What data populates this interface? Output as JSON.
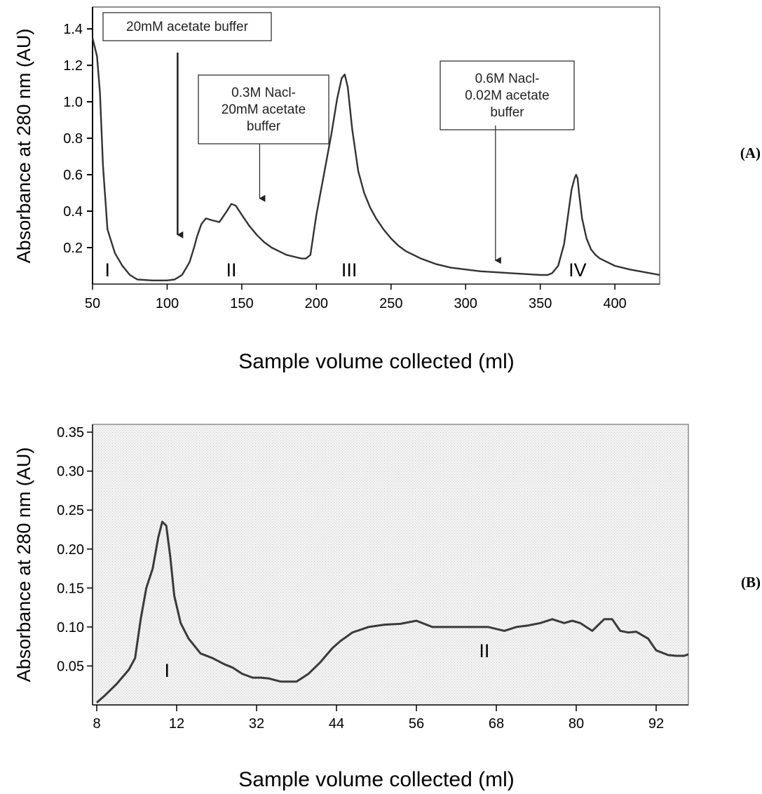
{
  "chart_data": [
    {
      "type": "line",
      "panel_label": "(A)",
      "xlabel": "Sample volume collected (ml)",
      "ylabel": "Absorbance at 280 nm (AU)",
      "xlim": [
        50,
        430
      ],
      "ylim": [
        0,
        1.52
      ],
      "x_ticks": [
        "50",
        "100",
        "150",
        "200",
        "250",
        "300",
        "350",
        "400"
      ],
      "y_ticks": [
        "0.2",
        "0.4",
        "0.6",
        "0.8",
        "1.0",
        "1.2",
        "1.4"
      ],
      "grid": false,
      "series": [
        {
          "x": [
            50,
            53,
            55,
            57,
            60,
            65,
            70,
            75,
            80,
            90,
            100,
            105,
            110,
            115,
            118,
            120,
            123,
            126,
            130,
            135,
            140,
            143,
            146,
            150,
            155,
            160,
            165,
            170,
            175,
            180,
            185,
            190,
            193,
            196,
            200,
            205,
            210,
            214,
            217,
            219,
            221,
            224,
            228,
            232,
            236,
            240,
            245,
            250,
            255,
            260,
            270,
            280,
            290,
            300,
            310,
            320,
            330,
            340,
            350,
            355,
            358,
            362,
            366,
            369,
            371,
            373,
            374,
            375,
            376,
            378,
            381,
            384,
            387,
            390,
            395,
            400,
            410,
            420,
            430
          ],
          "y": [
            1.35,
            1.25,
            1.05,
            0.65,
            0.3,
            0.17,
            0.1,
            0.05,
            0.025,
            0.02,
            0.02,
            0.025,
            0.05,
            0.12,
            0.2,
            0.26,
            0.33,
            0.36,
            0.35,
            0.34,
            0.4,
            0.44,
            0.43,
            0.38,
            0.32,
            0.27,
            0.23,
            0.2,
            0.18,
            0.16,
            0.15,
            0.14,
            0.14,
            0.16,
            0.38,
            0.6,
            0.82,
            1.02,
            1.13,
            1.15,
            1.08,
            0.85,
            0.62,
            0.5,
            0.42,
            0.36,
            0.3,
            0.25,
            0.21,
            0.18,
            0.14,
            0.11,
            0.09,
            0.08,
            0.07,
            0.065,
            0.06,
            0.055,
            0.05,
            0.05,
            0.06,
            0.1,
            0.22,
            0.4,
            0.52,
            0.58,
            0.6,
            0.58,
            0.5,
            0.36,
            0.25,
            0.19,
            0.16,
            0.14,
            0.12,
            0.1,
            0.08,
            0.065,
            0.05
          ]
        }
      ],
      "fraction_labels": [
        {
          "text": "I",
          "x": 60,
          "y": 0.08
        },
        {
          "text": "II",
          "x": 143,
          "y": 0.08
        },
        {
          "text": "III",
          "x": 222,
          "y": 0.08
        },
        {
          "text": "IV",
          "x": 375,
          "y": 0.08
        }
      ],
      "annotations": [
        {
          "lines": [
            "20mM acetate buffer"
          ],
          "arrow_x": 107,
          "arrow_top_y": 1.27,
          "arrow_tip_y": 0.27
        },
        {
          "lines": [
            "0.3M Nacl-",
            "20mM acetate",
            "buffer"
          ],
          "arrow_x": 162,
          "arrow_top_y": 0.77,
          "arrow_tip_y": 0.47
        },
        {
          "lines": [
            "0.6M Nacl-",
            "0.02M acetate",
            "buffer"
          ],
          "arrow_x": 320,
          "arrow_top_y": 0.87,
          "arrow_tip_y": 0.13
        }
      ]
    },
    {
      "type": "line",
      "panel_label": "(B)",
      "xlabel": "Sample volume collected (ml)",
      "ylabel": "Absorbance at 280 nm (AU)",
      "x_ticks": [
        "8",
        "12",
        "32",
        "44",
        "56",
        "68",
        "80",
        "92"
      ],
      "x_tick_positions": [
        0,
        1,
        2,
        3,
        4,
        5,
        6,
        7
      ],
      "xlim_positions": [
        0,
        7.46
      ],
      "ylim": [
        0,
        0.36
      ],
      "y_ticks": [
        "0.05",
        "0.10",
        "0.15",
        "0.20",
        "0.25",
        "0.30",
        "0.35"
      ],
      "grid": true,
      "series": [
        {
          "x": [
            0,
            0.1,
            0.25,
            0.4,
            0.48,
            0.55,
            0.62,
            0.7,
            0.77,
            0.82,
            0.87,
            0.92,
            0.97,
            1.05,
            1.15,
            1.3,
            1.45,
            1.6,
            1.7,
            1.82,
            1.95,
            2.05,
            2.15,
            2.3,
            2.5,
            2.65,
            2.8,
            2.95,
            3.05,
            3.2,
            3.4,
            3.6,
            3.8,
            4.0,
            4.2,
            4.35,
            4.5,
            4.7,
            4.9,
            5.1,
            5.25,
            5.4,
            5.55,
            5.7,
            5.85,
            5.95,
            6.05,
            6.2,
            6.35,
            6.45,
            6.55,
            6.65,
            6.75,
            6.9,
            7.0,
            7.15,
            7.25,
            7.35,
            7.46
          ],
          "y": [
            0.003,
            0.012,
            0.027,
            0.045,
            0.06,
            0.11,
            0.15,
            0.175,
            0.215,
            0.235,
            0.23,
            0.19,
            0.14,
            0.105,
            0.085,
            0.066,
            0.06,
            0.052,
            0.048,
            0.04,
            0.035,
            0.035,
            0.034,
            0.03,
            0.03,
            0.04,
            0.055,
            0.073,
            0.082,
            0.093,
            0.1,
            0.103,
            0.104,
            0.108,
            0.1,
            0.1,
            0.1,
            0.1,
            0.1,
            0.095,
            0.1,
            0.102,
            0.105,
            0.11,
            0.105,
            0.108,
            0.105,
            0.095,
            0.11,
            0.11,
            0.095,
            0.093,
            0.094,
            0.085,
            0.07,
            0.064,
            0.063,
            0.063,
            0.065
          ]
        }
      ],
      "fraction_labels": [
        {
          "text": "I",
          "x": 0.88,
          "y": 0.045
        },
        {
          "text": "II",
          "x": 4.85,
          "y": 0.07
        }
      ]
    }
  ]
}
